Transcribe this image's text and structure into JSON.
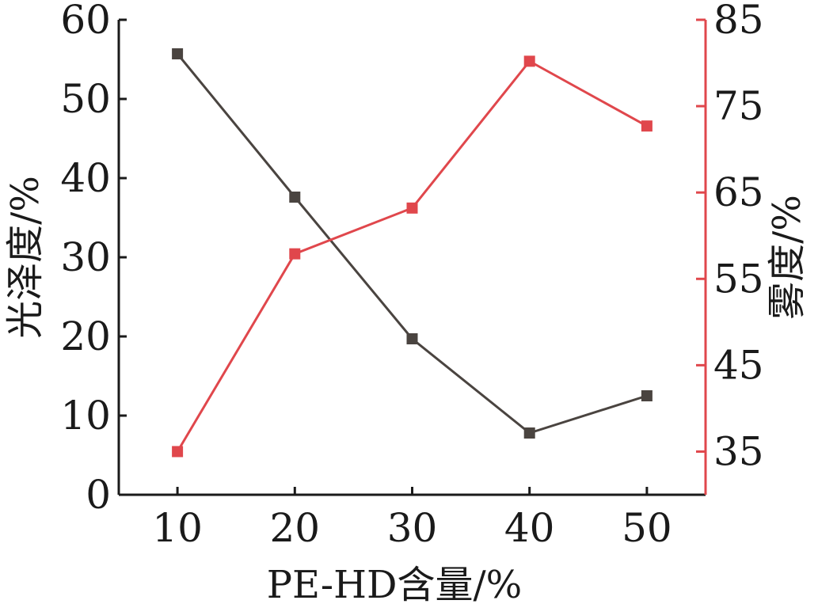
{
  "chart_data": {
    "type": "line",
    "x": [
      10,
      20,
      30,
      40,
      50
    ],
    "xlabel": "PE-HD含量/%",
    "xlim": [
      5,
      55
    ],
    "xticks": [
      10,
      20,
      30,
      40,
      50
    ],
    "y_left": {
      "label": "光泽度/%",
      "lim": [
        0,
        60
      ],
      "ticks": [
        0,
        10,
        20,
        30,
        40,
        50,
        60
      ],
      "color": "#1a1a1a"
    },
    "y_right": {
      "label": "雾度/%",
      "lim": [
        30,
        85
      ],
      "ticks": [
        35,
        45,
        55,
        65,
        75,
        85
      ],
      "color": "#e0474c"
    },
    "series": [
      {
        "axis": "left",
        "values": [
          55.7,
          37.6,
          19.7,
          7.8,
          12.5
        ],
        "color": "#4a4440",
        "marker": "square"
      },
      {
        "axis": "right",
        "values": [
          35.0,
          57.9,
          63.2,
          80.2,
          72.7
        ],
        "color": "#e0474c",
        "marker": "square"
      }
    ],
    "grid": false
  }
}
